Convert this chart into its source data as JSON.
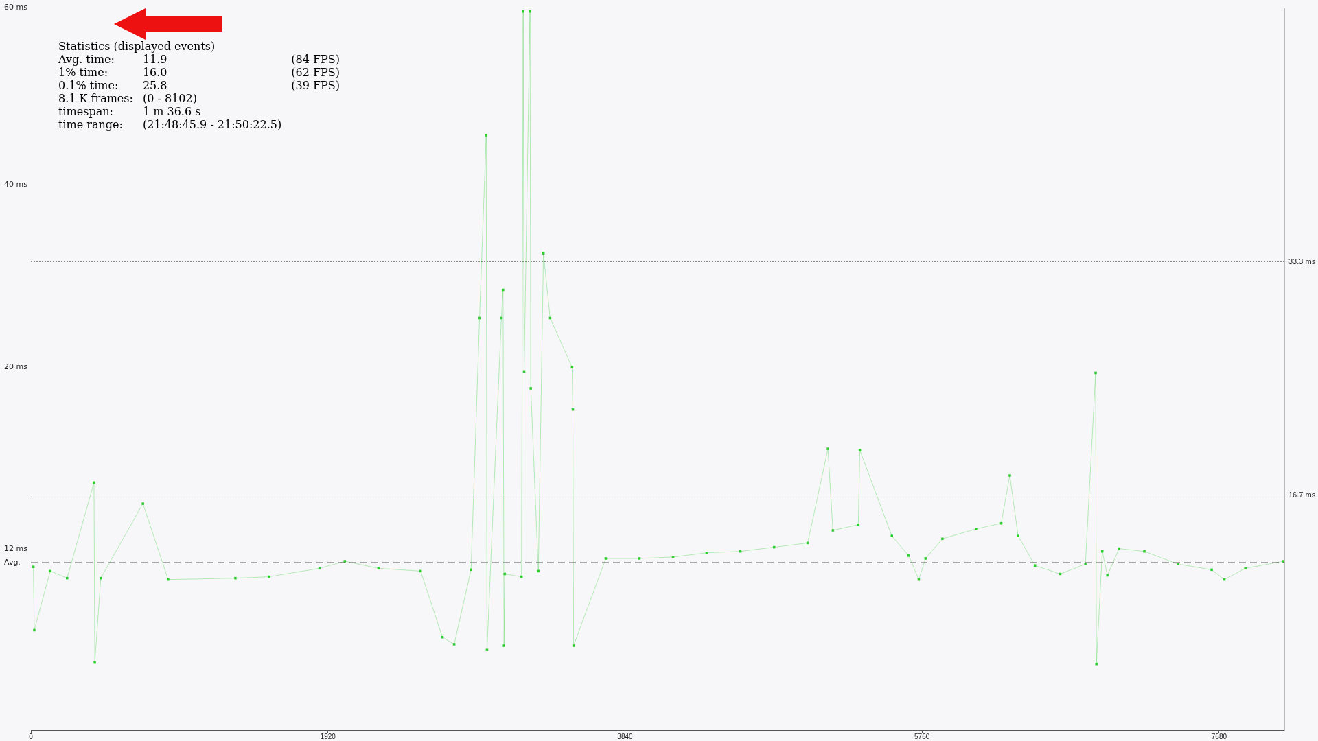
{
  "chart_data": {
    "type": "line",
    "marker": "square",
    "line_style": "solid",
    "grid": "y",
    "legend": false,
    "annotations": [
      "60 ms",
      "40 ms",
      "20 ms",
      "12 ms",
      "Statistics (displayed events)",
      "Avg. time:\t11.9\t(84 FPS)",
      "1% time:\t16.0\t(62 FPS)",
      "0.1% time:\t25.8\t(39 FPS)",
      "8.1 K frames:\t(0 - 8102)",
      "timespan:\t1 m 36.6 s",
      "time range:\t(21:48:45.9 - 21:50:22.5)"
    ],
    "xlim": [
      0,
      8102
    ],
    "xticks": [
      0,
      1920,
      3840,
      5760,
      7680
    ],
    "ylim": [
      0,
      51.3
    ],
    "yticks": [
      {
        "value": 33.3,
        "label": "33.3 ms"
      },
      {
        "value": 16.7,
        "label": "16.7 ms"
      }
    ],
    "ref_lines": [
      {
        "axis": "y",
        "value": 11.9,
        "label": "Avg.",
        "line_style": "dashed",
        "color": "#333333"
      }
    ],
    "series": [
      {
        "color": "#2ecc2e",
        "x": [
          16,
          22,
          125,
          234,
          408,
          413,
          452,
          724,
          887,
          1322,
          1540,
          1866,
          2029,
          2247,
          2519,
          2660,
          2736,
          2845,
          2900,
          2943,
          2948,
          3041,
          3052,
          3058,
          3063,
          3171,
          3182,
          3188,
          3226,
          3231,
          3280,
          3313,
          3356,
          3498,
          3503,
          3508,
          3716,
          3933,
          4151,
          4368,
          4586,
          4804,
          5021,
          5152,
          5184,
          5348,
          5358,
          5565,
          5674,
          5739,
          5783,
          5892,
          6109,
          6272,
          6327,
          6381,
          6490,
          6653,
          6816,
          6882,
          6887,
          6925,
          6958,
          7034,
          7197,
          7415,
          7632,
          7714,
          7850,
          8095
        ],
        "values": [
          11.6,
          7.1,
          11.3,
          10.8,
          17.6,
          4.8,
          10.8,
          16.1,
          10.7,
          10.8,
          10.9,
          11.5,
          12.0,
          11.5,
          11.3,
          6.6,
          6.1,
          11.4,
          29.3,
          42.3,
          5.7,
          29.3,
          31.3,
          6.0,
          11.1,
          10.9,
          51.1,
          25.5,
          51.1,
          24.3,
          11.3,
          33.9,
          29.3,
          25.8,
          22.8,
          6.0,
          12.2,
          12.2,
          12.3,
          12.6,
          12.7,
          13.0,
          13.3,
          20.0,
          14.2,
          14.6,
          19.9,
          13.8,
          12.4,
          10.7,
          12.2,
          13.6,
          14.3,
          14.7,
          18.1,
          13.8,
          11.7,
          11.1,
          11.8,
          25.4,
          4.7,
          12.7,
          11.0,
          12.9,
          12.7,
          11.8,
          11.4,
          10.7,
          11.5,
          12.0
        ]
      }
    ]
  }
}
